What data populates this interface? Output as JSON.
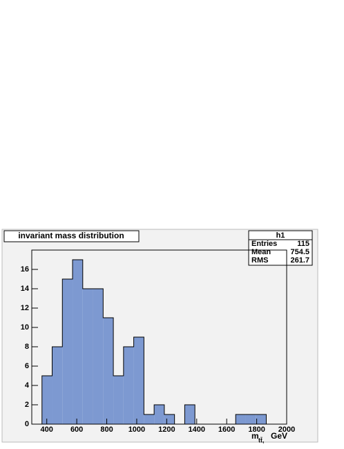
{
  "chart_data": {
    "type": "histogram",
    "title": "invariant mass distribution",
    "bins": [
      300,
      368,
      436,
      504,
      572,
      640,
      708,
      776,
      844,
      912,
      980,
      1048,
      1116,
      1184,
      1252,
      1320,
      1388,
      1456,
      1524,
      1592,
      1660,
      1728,
      1796,
      1864,
      1932,
      2000
    ],
    "values": [
      0,
      5,
      8,
      15,
      17,
      14,
      14,
      11,
      5,
      8,
      9,
      1,
      2,
      1,
      0,
      2,
      0,
      0,
      0,
      0,
      1,
      1,
      1,
      0,
      0
    ],
    "color": "#7d99d1",
    "xlim": [
      300,
      2000
    ],
    "xticks": [
      400,
      600,
      800,
      1000,
      1200,
      1400,
      1600,
      1800,
      2000
    ],
    "ylim": [
      0,
      18
    ],
    "yticks": [
      0,
      2,
      4,
      6,
      8,
      10,
      12,
      14,
      16
    ],
    "x_label": "m",
    "x_label_subscript": "tt̄,",
    "x_label_unit": "GeV",
    "stats": {
      "name": "h1",
      "rows": [
        [
          "Entries",
          115
        ],
        [
          "Mean",
          754.5
        ],
        [
          "RMS",
          261.7
        ]
      ]
    }
  }
}
